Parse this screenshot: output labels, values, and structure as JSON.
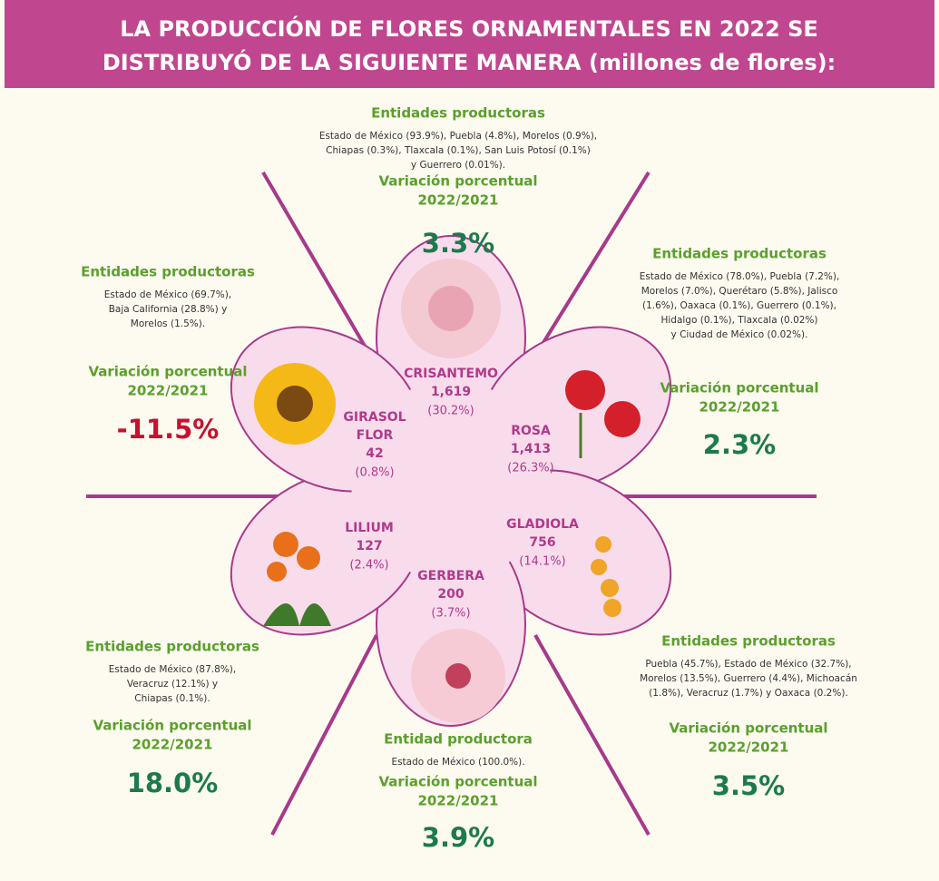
{
  "header": {
    "title_lines": [
      "LA PRODUCCIÓN DE FLORES ORNAMENTALES EN 2022 SE",
      "DISTRIBUYÓ DE LA SIGUIENTE MANERA (millones de flores):"
    ]
  },
  "flowers": [
    {
      "name": [
        "CRISANTEMO"
      ],
      "value": "1,619",
      "share": "(30.2%)"
    },
    {
      "name": [
        "ROSA"
      ],
      "value": "1,413",
      "share": "(26.3%)"
    },
    {
      "name": [
        "GLADIOLA"
      ],
      "value": "756",
      "share": "(14.1%)"
    },
    {
      "name": [
        "GERBERA"
      ],
      "value": "200",
      "share": "(3.7%)"
    },
    {
      "name": [
        "LILIUM"
      ],
      "value": "127",
      "share": "(2.4%)"
    },
    {
      "name": [
        "GIRASOL",
        "FLOR"
      ],
      "value": "42",
      "share": "(0.8%)"
    }
  ],
  "blocks": [
    {
      "heading": "Entidades productoras",
      "entities": [
        "Estado de México (93.9%), Puebla (4.8%), Morelos (0.9%),",
        "Chiapas (0.3%), Tlaxcala (0.1%), San Luis Potosí (0.1%)",
        "y Guerrero (0.01%)."
      ],
      "variation": [
        "Variación porcentual",
        "2022/2021"
      ],
      "change": "3.3%"
    },
    {
      "heading": "Entidades productoras",
      "entities": [
        "Estado de México (78.0%), Puebla (7.2%),",
        "Morelos (7.0%), Querétaro (5.8%), Jalisco",
        "(1.6%), Oaxaca (0.1%), Guerrero (0.1%),",
        "Hidalgo (0.1%), Tlaxcala (0.02%)",
        "y Ciudad de México (0.02%)."
      ],
      "variation": [
        "Variación porcentual",
        "2022/2021"
      ],
      "change": "2.3%"
    },
    {
      "heading": "Entidades productoras",
      "entities": [
        "Puebla (45.7%), Estado de México (32.7%),",
        "Morelos (13.5%), Guerrero (4.4%), Michoacán",
        "(1.8%), Veracruz (1.7%) y Oaxaca (0.2%)."
      ],
      "variation": [
        "Variación porcentual",
        "2022/2021"
      ],
      "change": "3.5%"
    },
    {
      "heading": "Entidad productora",
      "entities": [
        "Estado de México (100.0%)."
      ],
      "variation": [
        "Variación porcentual",
        "2022/2021"
      ],
      "change": "3.9%"
    },
    {
      "heading": "Entidades productoras",
      "entities": [
        "Estado de México (87.8%),",
        "Veracruz (12.1%) y",
        "Chiapas (0.1%)."
      ],
      "variation": [
        "Variación porcentual",
        "2022/2021"
      ],
      "change": "18.0%"
    },
    {
      "heading": "Entidades productoras",
      "entities": [
        "Estado de México (69.7%),",
        "Baja California (28.8%) y",
        "Morelos (1.5%)."
      ],
      "variation": [
        "Variación porcentual",
        "2022/2021"
      ],
      "change": "-11.5%"
    }
  ]
}
